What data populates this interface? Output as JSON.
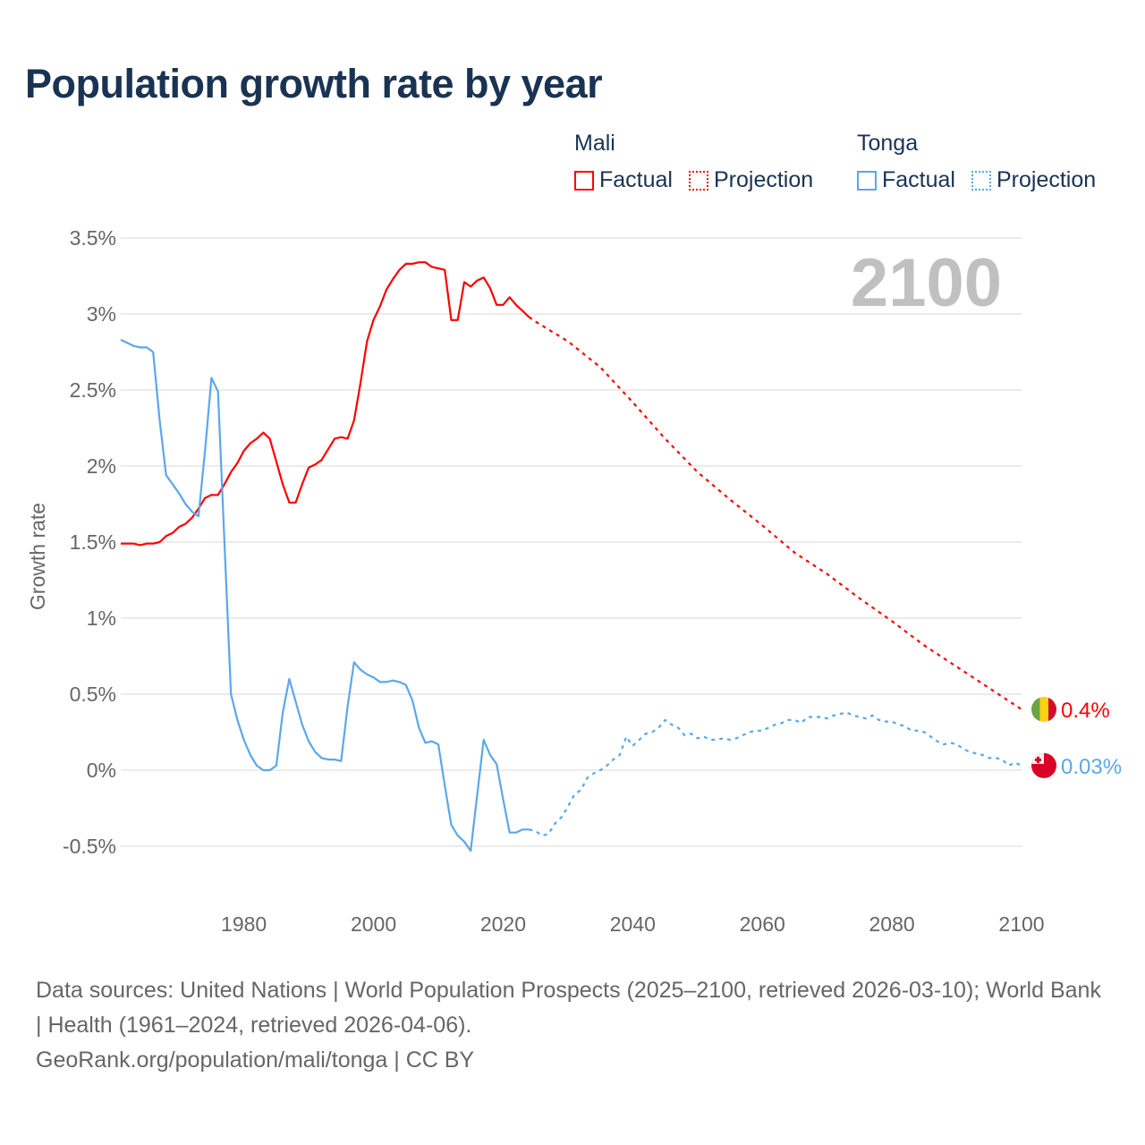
{
  "title": "Population growth rate by year",
  "legend": {
    "groups": [
      {
        "name": "Mali",
        "factual": "Factual",
        "projection": "Projection",
        "color": "#ff0000"
      },
      {
        "name": "Tonga",
        "factual": "Factual",
        "projection": "Projection",
        "color": "#5ba7ec"
      }
    ]
  },
  "source": {
    "line1": "Data sources: United Nations | World Population Prospects (2025–2100, retrieved 2026-03-10); World Bank | Health (1961–2024, retrieved 2026-04-06).",
    "line2": "GeoRank.org/population/mali/tonga | CC BY"
  },
  "chart_data": {
    "type": "line",
    "title": "Population growth rate by year",
    "ylabel": "Growth rate",
    "xlabel": "",
    "xlim": [
      1961,
      2100
    ],
    "ylim": [
      -0.7,
      3.6
    ],
    "x_ticks": [
      1980,
      2000,
      2020,
      2040,
      2060,
      2080,
      2100
    ],
    "y_ticks": [
      -0.5,
      0,
      0.5,
      1,
      1.5,
      2,
      2.5,
      3,
      3.5
    ],
    "y_tick_labels": [
      "-0.5%",
      "0%",
      "0.5%",
      "1%",
      "1.5%",
      "2%",
      "2.5%",
      "3%",
      "3.5%"
    ],
    "grid": true,
    "year_label": "2100",
    "series": [
      {
        "name": "Mali",
        "type": "Factual",
        "color": "#ff0000",
        "x_start": 1961,
        "values": [
          1.49,
          1.49,
          1.49,
          1.48,
          1.49,
          1.49,
          1.5,
          1.54,
          1.56,
          1.6,
          1.62,
          1.66,
          1.72,
          1.79,
          1.81,
          1.81,
          1.88,
          1.96,
          2.02,
          2.1,
          2.15,
          2.18,
          2.22,
          2.18,
          2.03,
          1.88,
          1.76,
          1.76,
          1.88,
          1.99,
          2.01,
          2.04,
          2.11,
          2.18,
          2.19,
          2.18,
          2.3,
          2.55,
          2.82,
          2.96,
          3.05,
          3.16,
          3.23,
          3.29,
          3.33,
          3.33,
          3.34,
          3.34,
          3.31,
          3.3,
          3.29,
          2.96,
          2.96,
          3.21,
          3.18,
          3.22,
          3.24,
          3.17,
          3.06,
          3.06,
          3.11,
          3.06,
          3.02,
          2.98
        ]
      },
      {
        "name": "Mali",
        "type": "Projection",
        "color": "#ff0000",
        "x": [
          2024,
          2025,
          2030,
          2035,
          2040,
          2045,
          2050,
          2055,
          2060,
          2065,
          2070,
          2075,
          2080,
          2085,
          2090,
          2095,
          2100
        ],
        "values": [
          2.98,
          2.95,
          2.82,
          2.65,
          2.42,
          2.18,
          1.96,
          1.78,
          1.61,
          1.43,
          1.29,
          1.13,
          0.98,
          0.82,
          0.68,
          0.54,
          0.4
        ]
      },
      {
        "name": "Tonga",
        "type": "Factual",
        "color": "#5ba7ec",
        "x_start": 1961,
        "values": [
          2.83,
          2.81,
          2.79,
          2.78,
          2.78,
          2.75,
          2.3,
          1.94,
          1.88,
          1.82,
          1.75,
          1.7,
          1.67,
          2.1,
          2.58,
          2.49,
          1.5,
          0.5,
          0.33,
          0.2,
          0.1,
          0.03,
          0.0,
          0.0,
          0.03,
          0.38,
          0.6,
          0.45,
          0.3,
          0.19,
          0.12,
          0.08,
          0.07,
          0.07,
          0.06,
          0.42,
          0.71,
          0.66,
          0.63,
          0.61,
          0.58,
          0.58,
          0.59,
          0.58,
          0.56,
          0.46,
          0.28,
          0.18,
          0.19,
          0.17,
          -0.1,
          -0.36,
          -0.43,
          -0.47,
          -0.53,
          -0.16,
          0.2,
          0.1,
          0.04,
          -0.19,
          -0.41,
          -0.41,
          -0.39,
          -0.39
        ]
      },
      {
        "name": "Tonga",
        "type": "Projection",
        "color": "#5ba7ec",
        "x_start": 2024,
        "values": [
          -0.39,
          -0.4,
          -0.43,
          -0.42,
          -0.35,
          -0.31,
          -0.24,
          -0.16,
          -0.13,
          -0.05,
          -0.02,
          0.0,
          0.03,
          0.07,
          0.1,
          0.22,
          0.16,
          0.2,
          0.24,
          0.25,
          0.28,
          0.33,
          0.3,
          0.28,
          0.23,
          0.24,
          0.21,
          0.22,
          0.2,
          0.2,
          0.21,
          0.2,
          0.21,
          0.23,
          0.25,
          0.26,
          0.26,
          0.28,
          0.3,
          0.31,
          0.33,
          0.33,
          0.31,
          0.35,
          0.35,
          0.35,
          0.34,
          0.36,
          0.37,
          0.38,
          0.36,
          0.35,
          0.34,
          0.36,
          0.33,
          0.32,
          0.32,
          0.3,
          0.29,
          0.26,
          0.26,
          0.25,
          0.22,
          0.19,
          0.17,
          0.18,
          0.17,
          0.14,
          0.12,
          0.11,
          0.1,
          0.08,
          0.08,
          0.07,
          0.03,
          0.05,
          0.03
        ]
      }
    ],
    "end_labels": [
      {
        "name": "Mali",
        "value": 0.4,
        "label": "0.4%",
        "color": "#ff0000"
      },
      {
        "name": "Tonga",
        "value": 0.03,
        "label": "0.03%",
        "color": "#5ba7ec"
      }
    ]
  }
}
